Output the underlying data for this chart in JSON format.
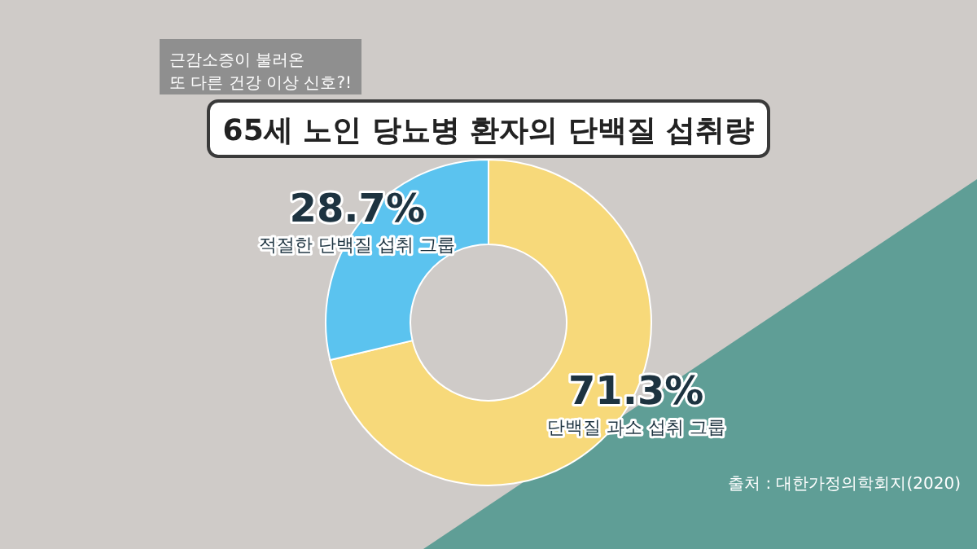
{
  "chart_data": {
    "type": "donut",
    "title": "65세 노인 당뇨병 환자의 단백질 섭취량",
    "categories": [
      "단백질 과소 섭취 그룹",
      "적절한 단백질 섭취 그룹"
    ],
    "values": [
      71.3,
      28.7
    ],
    "colors": [
      "#f7d97a",
      "#5bc3ef"
    ],
    "value_labels": [
      "71.3%",
      "28.7%"
    ],
    "legend": false,
    "annotations": [
      "근감소증이 불러온\n또 다른 건강 이상 신호?!",
      "출처 : 대한가정의학회지(2020)"
    ]
  }
}
